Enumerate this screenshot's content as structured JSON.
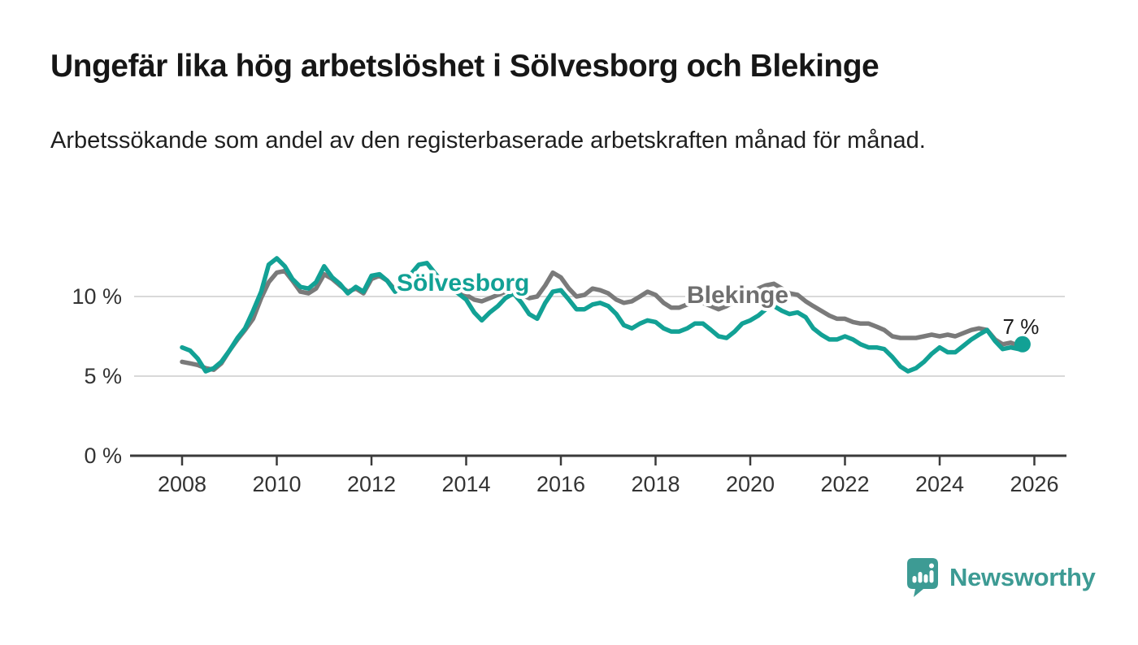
{
  "header": {
    "title": "Ungefär lika hög arbetslöshet i Sölvesborg och Blekinge",
    "subtitle": "Arbetssökande som andel av den registerbaserade arbetskraften månad för månad."
  },
  "footer": {
    "brand": "Newsworthy",
    "brand_color": "#3d9b94",
    "logo_icon": "newsworthy-speech-bubble-bars-icon"
  },
  "chart_data": {
    "type": "line",
    "title": "Ungefär lika hög arbetslöshet i Sölvesborg och Blekinge",
    "subtitle": "Arbetssökande som andel av den registerbaserade arbetskraften månad för månad.",
    "unit": "%",
    "legend": "inline-labels-on-lines",
    "grid": "horizontal-only",
    "x_axis": {
      "range": [
        2007.5,
        2026.7
      ],
      "ticks": [
        {
          "year": 2008,
          "label": "2008"
        },
        {
          "year": 2010,
          "label": "2010"
        },
        {
          "year": 2012,
          "label": "2012"
        },
        {
          "year": 2014,
          "label": "2014"
        },
        {
          "year": 2016,
          "label": "2016"
        },
        {
          "year": 2018,
          "label": "2018"
        },
        {
          "year": 2020,
          "label": "2020"
        },
        {
          "year": 2022,
          "label": "2022"
        },
        {
          "year": 2024,
          "label": "2024"
        },
        {
          "year": 2026,
          "label": "2026"
        }
      ]
    },
    "y_axis": {
      "range": [
        0,
        13
      ],
      "ticks": [
        {
          "value": 0,
          "label": "0 %"
        },
        {
          "value": 5,
          "label": "5 %"
        },
        {
          "value": 10,
          "label": "10 %"
        }
      ]
    },
    "series": [
      {
        "id": "solvesborg",
        "name": "Sölvesborg",
        "color": "#12a195"
      },
      {
        "id": "blekinge",
        "name": "Blekinge",
        "color": "#7a7a7a",
        "label_color": "#6f6f6f"
      }
    ],
    "end_label": "7 %",
    "end_value": 7,
    "points_format": [
      "decimal_year",
      "solvesborg_pct",
      "blekinge_pct"
    ],
    "points": [
      [
        2008.0,
        6.8,
        5.9
      ],
      [
        2008.17,
        6.6,
        5.8
      ],
      [
        2008.33,
        6.1,
        5.7
      ],
      [
        2008.5,
        5.3,
        5.5
      ],
      [
        2008.67,
        5.5,
        5.4
      ],
      [
        2008.83,
        5.9,
        5.8
      ],
      [
        2009.0,
        6.6,
        6.6
      ],
      [
        2009.17,
        7.4,
        7.3
      ],
      [
        2009.33,
        8.0,
        7.9
      ],
      [
        2009.5,
        9.1,
        8.6
      ],
      [
        2009.67,
        10.3,
        9.9
      ],
      [
        2009.83,
        12.0,
        10.9
      ],
      [
        2010.0,
        12.4,
        11.5
      ],
      [
        2010.17,
        11.9,
        11.6
      ],
      [
        2010.33,
        11.1,
        11.0
      ],
      [
        2010.5,
        10.6,
        10.3
      ],
      [
        2010.67,
        10.5,
        10.2
      ],
      [
        2010.83,
        10.9,
        10.5
      ],
      [
        2011.0,
        11.9,
        11.4
      ],
      [
        2011.17,
        11.2,
        11.1
      ],
      [
        2011.33,
        10.8,
        10.7
      ],
      [
        2011.5,
        10.2,
        10.3
      ],
      [
        2011.67,
        10.6,
        10.5
      ],
      [
        2011.83,
        10.3,
        10.2
      ],
      [
        2012.0,
        11.3,
        11.1
      ],
      [
        2012.17,
        11.4,
        11.3
      ],
      [
        2012.33,
        11.0,
        11.0
      ],
      [
        2012.5,
        10.3,
        10.4
      ],
      [
        2012.67,
        10.7,
        10.8
      ],
      [
        2012.83,
        11.4,
        11.2
      ],
      [
        2013.0,
        12.0,
        11.4
      ],
      [
        2013.17,
        12.1,
        11.3
      ],
      [
        2013.33,
        11.5,
        11.1
      ],
      [
        2013.5,
        10.9,
        10.8
      ],
      [
        2013.67,
        10.5,
        10.6
      ],
      [
        2013.83,
        10.2,
        10.4
      ],
      [
        2014.0,
        9.8,
        10.1
      ],
      [
        2014.17,
        9.0,
        9.8
      ],
      [
        2014.33,
        8.5,
        9.7
      ],
      [
        2014.5,
        9.0,
        9.9
      ],
      [
        2014.67,
        9.4,
        10.1
      ],
      [
        2014.83,
        9.9,
        10.3
      ],
      [
        2015.0,
        10.2,
        10.4
      ],
      [
        2015.17,
        9.6,
        10.1
      ],
      [
        2015.33,
        8.9,
        9.9
      ],
      [
        2015.5,
        8.6,
        10.0
      ],
      [
        2015.67,
        9.6,
        10.7
      ],
      [
        2015.83,
        10.3,
        11.5
      ],
      [
        2016.0,
        10.4,
        11.2
      ],
      [
        2016.17,
        9.8,
        10.5
      ],
      [
        2016.33,
        9.2,
        10.0
      ],
      [
        2016.5,
        9.2,
        10.1
      ],
      [
        2016.67,
        9.5,
        10.5
      ],
      [
        2016.83,
        9.6,
        10.4
      ],
      [
        2017.0,
        9.4,
        10.2
      ],
      [
        2017.17,
        8.9,
        9.8
      ],
      [
        2017.33,
        8.2,
        9.6
      ],
      [
        2017.5,
        8.0,
        9.7
      ],
      [
        2017.67,
        8.3,
        10.0
      ],
      [
        2017.83,
        8.5,
        10.3
      ],
      [
        2018.0,
        8.4,
        10.1
      ],
      [
        2018.17,
        8.0,
        9.6
      ],
      [
        2018.33,
        7.8,
        9.3
      ],
      [
        2018.5,
        7.8,
        9.3
      ],
      [
        2018.67,
        8.0,
        9.5
      ],
      [
        2018.83,
        8.3,
        9.7
      ],
      [
        2019.0,
        8.3,
        9.6
      ],
      [
        2019.17,
        7.9,
        9.4
      ],
      [
        2019.33,
        7.5,
        9.2
      ],
      [
        2019.5,
        7.4,
        9.4
      ],
      [
        2019.67,
        7.8,
        9.7
      ],
      [
        2019.83,
        8.3,
        10.0
      ],
      [
        2020.0,
        8.5,
        10.2
      ],
      [
        2020.17,
        8.8,
        10.5
      ],
      [
        2020.33,
        9.2,
        10.7
      ],
      [
        2020.5,
        9.4,
        10.8
      ],
      [
        2020.67,
        9.1,
        10.5
      ],
      [
        2020.83,
        8.9,
        10.2
      ],
      [
        2021.0,
        9.0,
        10.1
      ],
      [
        2021.17,
        8.7,
        9.7
      ],
      [
        2021.33,
        8.0,
        9.4
      ],
      [
        2021.5,
        7.6,
        9.1
      ],
      [
        2021.67,
        7.3,
        8.8
      ],
      [
        2021.83,
        7.3,
        8.6
      ],
      [
        2022.0,
        7.5,
        8.6
      ],
      [
        2022.17,
        7.3,
        8.4
      ],
      [
        2022.33,
        7.0,
        8.3
      ],
      [
        2022.5,
        6.8,
        8.3
      ],
      [
        2022.67,
        6.8,
        8.1
      ],
      [
        2022.83,
        6.7,
        7.9
      ],
      [
        2023.0,
        6.2,
        7.5
      ],
      [
        2023.17,
        5.6,
        7.4
      ],
      [
        2023.33,
        5.3,
        7.4
      ],
      [
        2023.5,
        5.5,
        7.4
      ],
      [
        2023.67,
        5.9,
        7.5
      ],
      [
        2023.83,
        6.4,
        7.6
      ],
      [
        2024.0,
        6.8,
        7.5
      ],
      [
        2024.17,
        6.5,
        7.6
      ],
      [
        2024.33,
        6.5,
        7.5
      ],
      [
        2024.5,
        6.9,
        7.7
      ],
      [
        2024.67,
        7.3,
        7.9
      ],
      [
        2024.83,
        7.6,
        8.0
      ],
      [
        2025.0,
        7.9,
        7.9
      ],
      [
        2025.17,
        7.2,
        7.3
      ],
      [
        2025.33,
        6.7,
        7.0
      ],
      [
        2025.5,
        6.8,
        7.1
      ],
      [
        2025.67,
        6.7,
        6.9
      ],
      [
        2025.75,
        7.0,
        7.0
      ]
    ]
  }
}
